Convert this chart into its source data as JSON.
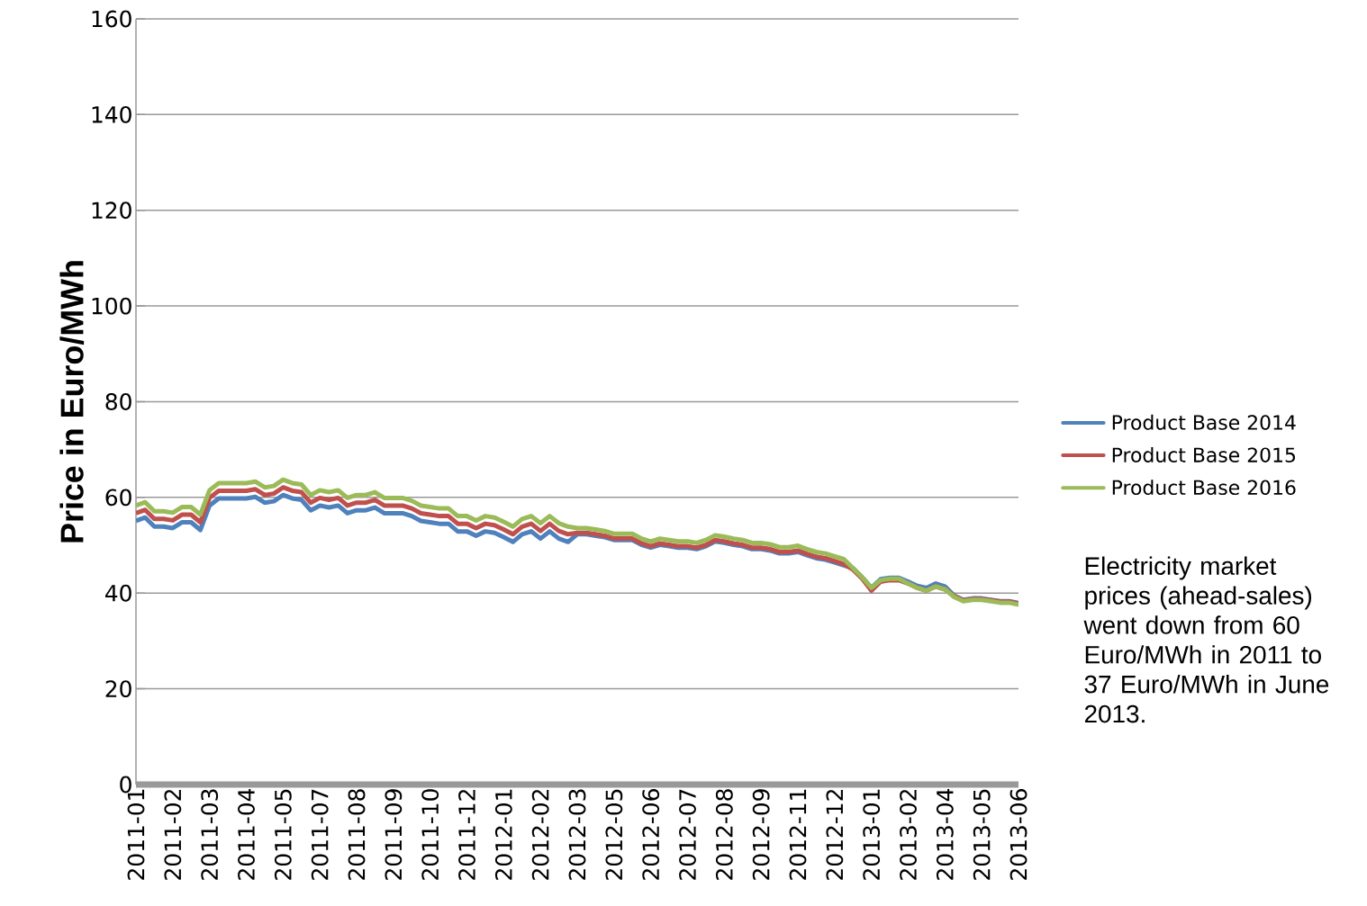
{
  "chart_data": {
    "type": "line",
    "ylabel": "Price in Euro/MWh",
    "categories": [
      "2011-01",
      null,
      null,
      null,
      "2011-02",
      null,
      null,
      null,
      "2011-03",
      null,
      null,
      null,
      "2011-04",
      null,
      null,
      null,
      "2011-05",
      null,
      null,
      null,
      "2011-07",
      null,
      null,
      null,
      "2011-08",
      null,
      null,
      null,
      "2011-09",
      null,
      null,
      null,
      "2011-10",
      null,
      null,
      null,
      "2011-12",
      null,
      null,
      null,
      "2012-01",
      null,
      null,
      null,
      "2012-02",
      null,
      null,
      null,
      "2012-03",
      null,
      null,
      null,
      "2012-05",
      null,
      null,
      null,
      "2012-06",
      null,
      null,
      null,
      "2012-07",
      null,
      null,
      null,
      "2012-08",
      null,
      null,
      null,
      "2012-09",
      null,
      null,
      null,
      "2012-11",
      null,
      null,
      null,
      "2012-12",
      null,
      null,
      null,
      "2013-01",
      null,
      null,
      null,
      "2013-02",
      null,
      null,
      null,
      "2013-04",
      null,
      null,
      null,
      "2013-05",
      null,
      null,
      null,
      "2013-06"
    ],
    "series": [
      {
        "name": "Product Base 2014",
        "color": "#4f81bd",
        "values": [
          55.1,
          55.8,
          53.9,
          53.9,
          53.6,
          54.8,
          54.8,
          53.2,
          58.3,
          59.8,
          59.8,
          59.8,
          59.8,
          60.1,
          58.9,
          59.2,
          60.5,
          59.8,
          59.5,
          57.3,
          58.3,
          57.9,
          58.3,
          56.7,
          57.3,
          57.3,
          57.9,
          56.7,
          56.7,
          56.7,
          56.1,
          55.1,
          54.8,
          54.5,
          54.5,
          52.9,
          52.9,
          52.0,
          52.9,
          52.6,
          51.7,
          50.7,
          52.3,
          52.9,
          51.4,
          52.9,
          51.4,
          50.7,
          52.3,
          52.3,
          52.0,
          51.7,
          51.1,
          51.1,
          51.1,
          50.1,
          49.5,
          50.1,
          49.8,
          49.5,
          49.5,
          49.2,
          49.8,
          50.8,
          50.5,
          50.1,
          49.8,
          49.2,
          49.2,
          48.9,
          48.3,
          48.3,
          48.6,
          47.9,
          47.3,
          47.0,
          46.4,
          45.8,
          45.2,
          43.3,
          41.1,
          42.9,
          43.2,
          43.2,
          42.4,
          41.5,
          41.1,
          42.0,
          41.4,
          39.5,
          38.6,
          38.9,
          38.9,
          38.6,
          38.3,
          38.3,
          37.9
        ]
      },
      {
        "name": "Product Base 2015",
        "color": "#c0504d",
        "values": [
          56.7,
          57.4,
          55.5,
          55.5,
          55.2,
          56.4,
          56.4,
          54.8,
          59.9,
          61.4,
          61.4,
          61.4,
          61.4,
          61.7,
          60.5,
          60.8,
          62.1,
          61.4,
          61.1,
          58.9,
          59.9,
          59.5,
          59.9,
          58.3,
          58.9,
          58.9,
          59.5,
          58.3,
          58.3,
          58.3,
          57.7,
          56.7,
          56.4,
          56.1,
          56.1,
          54.5,
          54.5,
          53.6,
          54.5,
          54.2,
          53.3,
          52.3,
          53.9,
          54.5,
          53.0,
          54.5,
          53.0,
          52.3,
          52.6,
          52.6,
          52.3,
          52.0,
          51.4,
          51.4,
          51.4,
          50.4,
          49.8,
          50.4,
          50.1,
          49.8,
          49.8,
          49.5,
          50.1,
          51.1,
          50.8,
          50.4,
          50.1,
          49.5,
          49.5,
          49.2,
          48.6,
          48.6,
          48.9,
          48.2,
          47.6,
          47.3,
          46.7,
          46.1,
          44.9,
          43.0,
          40.5,
          42.4,
          42.7,
          42.7,
          42.0,
          41.1,
          40.5,
          41.4,
          40.8,
          39.4,
          38.5,
          38.8,
          38.8,
          38.5,
          38.2,
          38.2,
          37.8
        ]
      },
      {
        "name": "Product Base 2016",
        "color": "#9bbb59",
        "values": [
          58.3,
          59.0,
          57.1,
          57.1,
          56.8,
          58.0,
          58.0,
          56.4,
          61.5,
          63.0,
          63.0,
          63.0,
          63.0,
          63.3,
          62.1,
          62.4,
          63.7,
          63.0,
          62.7,
          60.5,
          61.5,
          61.1,
          61.5,
          59.9,
          60.5,
          60.5,
          61.1,
          59.9,
          59.9,
          59.9,
          59.3,
          58.3,
          58.0,
          57.7,
          57.7,
          56.1,
          56.1,
          55.2,
          56.1,
          55.8,
          54.9,
          53.9,
          55.5,
          56.1,
          54.6,
          56.1,
          54.6,
          53.9,
          53.6,
          53.6,
          53.3,
          53.0,
          52.4,
          52.4,
          52.4,
          51.4,
          50.8,
          51.4,
          51.1,
          50.8,
          50.8,
          50.5,
          51.1,
          52.1,
          51.8,
          51.4,
          51.1,
          50.5,
          50.5,
          50.2,
          49.6,
          49.6,
          49.9,
          49.2,
          48.6,
          48.3,
          47.7,
          47.1,
          45.2,
          43.3,
          41.1,
          42.7,
          43.0,
          43.0,
          42.0,
          41.1,
          40.5,
          41.4,
          40.8,
          39.2,
          38.3,
          38.6,
          38.6,
          38.3,
          38.0,
          38.0,
          37.6
        ]
      }
    ],
    "ylim": [
      0,
      160
    ],
    "yticks": [
      0,
      20,
      40,
      60,
      80,
      100,
      120,
      140,
      160
    ],
    "grid": "y",
    "legend": "right",
    "marker": "none",
    "line_style": "solid",
    "annotations": [
      "Electricity market prices (ahead-sales) went down from 60 Euro/MWh in 2011 to 37 Euro/MWh in June 2013."
    ]
  }
}
